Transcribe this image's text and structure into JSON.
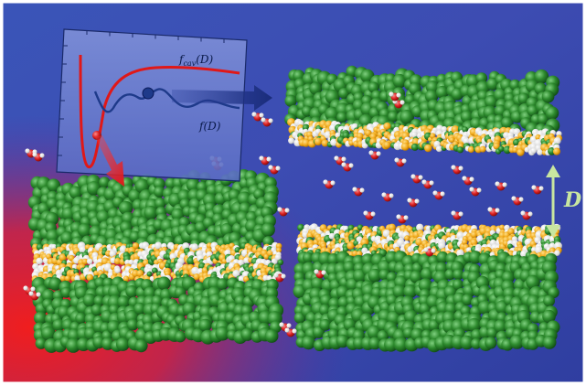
{
  "figure": {
    "inset": {
      "curve_upper_label": "f",
      "curve_upper_sub": "cav",
      "curve_upper_arg": "(D)",
      "curve_lower_label": "f",
      "curve_lower_arg": "(D)"
    },
    "separation_label": "D"
  },
  "colors": {
    "background_blue": "#3b4fb0",
    "background_red": "#e8202a",
    "surfactant_green": "#2e8b2e",
    "headgroup_orange": "#f0a818",
    "headgroup_white": "#eaeaea",
    "water_oxygen": "#d81e1e",
    "curve_red": "#e01818",
    "curve_blue": "#1e3a8a",
    "arrow_light_green": "#c8e6a0"
  }
}
